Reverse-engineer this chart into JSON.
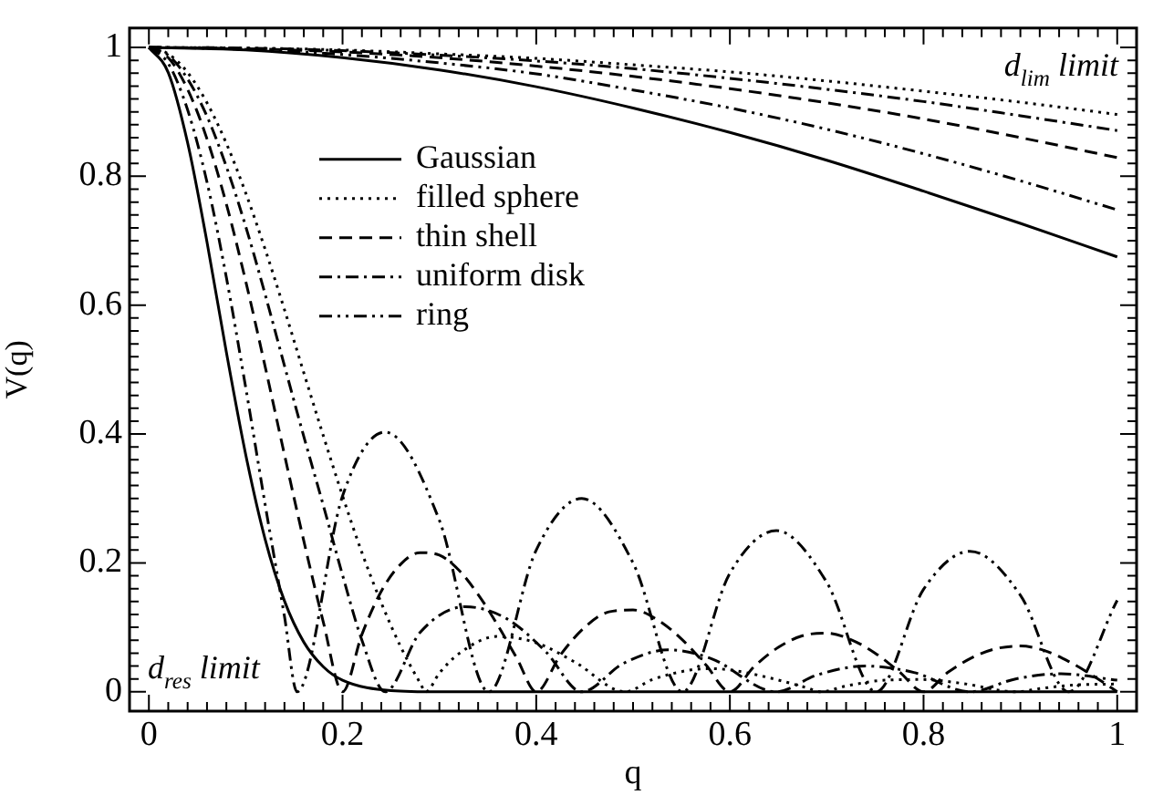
{
  "chart_data": {
    "type": "line",
    "xlabel": "q",
    "ylabel": "V(q)",
    "xlim": [
      -0.02,
      1.02
    ],
    "ylim": [
      -0.03,
      1.03
    ],
    "xticks": [
      0,
      {
        "value": 0.02,
        "label": null
      },
      {
        "value": 0.04,
        "label": null
      },
      {
        "value": 0.06,
        "label": null
      },
      {
        "value": 0.08,
        "label": null
      },
      {
        "value": 0.1,
        "label": null
      },
      {
        "value": 0.12,
        "label": null
      },
      {
        "value": 0.14,
        "label": null
      },
      {
        "value": 0.16,
        "label": null
      },
      {
        "value": 0.18,
        "label": null
      },
      0.2,
      {
        "value": 0.22,
        "label": null
      },
      {
        "value": 0.24,
        "label": null
      },
      {
        "value": 0.26,
        "label": null
      },
      {
        "value": 0.28,
        "label": null
      },
      {
        "value": 0.3,
        "label": null
      },
      {
        "value": 0.32,
        "label": null
      },
      {
        "value": 0.34,
        "label": null
      },
      {
        "value": 0.36,
        "label": null
      },
      {
        "value": 0.38,
        "label": null
      },
      0.4,
      {
        "value": 0.42,
        "label": null
      },
      {
        "value": 0.44,
        "label": null
      },
      {
        "value": 0.46,
        "label": null
      },
      {
        "value": 0.48,
        "label": null
      },
      {
        "value": 0.5,
        "label": null
      },
      {
        "value": 0.52,
        "label": null
      },
      {
        "value": 0.54,
        "label": null
      },
      {
        "value": 0.56,
        "label": null
      },
      {
        "value": 0.58,
        "label": null
      },
      0.6,
      {
        "value": 0.62,
        "label": null
      },
      {
        "value": 0.64,
        "label": null
      },
      {
        "value": 0.66,
        "label": null
      },
      {
        "value": 0.68,
        "label": null
      },
      {
        "value": 0.7,
        "label": null
      },
      {
        "value": 0.72,
        "label": null
      },
      {
        "value": 0.74,
        "label": null
      },
      {
        "value": 0.76,
        "label": null
      },
      {
        "value": 0.78,
        "label": null
      },
      0.8,
      {
        "value": 0.82,
        "label": null
      },
      {
        "value": 0.84,
        "label": null
      },
      {
        "value": 0.86,
        "label": null
      },
      {
        "value": 0.88,
        "label": null
      },
      {
        "value": 0.9,
        "label": null
      },
      {
        "value": 0.92,
        "label": null
      },
      {
        "value": 0.94,
        "label": null
      },
      {
        "value": 0.96,
        "label": null
      },
      {
        "value": 0.98,
        "label": null
      },
      1
    ],
    "yticks": [
      0,
      {
        "value": 0.02,
        "label": null
      },
      {
        "value": 0.04,
        "label": null
      },
      {
        "value": 0.06,
        "label": null
      },
      {
        "value": 0.08,
        "label": null
      },
      {
        "value": 0.1,
        "label": null
      },
      {
        "value": 0.12,
        "label": null
      },
      {
        "value": 0.14,
        "label": null
      },
      {
        "value": 0.16,
        "label": null
      },
      {
        "value": 0.18,
        "label": null
      },
      0.2,
      {
        "value": 0.22,
        "label": null
      },
      {
        "value": 0.24,
        "label": null
      },
      {
        "value": 0.26,
        "label": null
      },
      {
        "value": 0.28,
        "label": null
      },
      {
        "value": 0.3,
        "label": null
      },
      {
        "value": 0.32,
        "label": null
      },
      {
        "value": 0.34,
        "label": null
      },
      {
        "value": 0.36,
        "label": null
      },
      {
        "value": 0.38,
        "label": null
      },
      0.4,
      {
        "value": 0.42,
        "label": null
      },
      {
        "value": 0.44,
        "label": null
      },
      {
        "value": 0.46,
        "label": null
      },
      {
        "value": 0.48,
        "label": null
      },
      {
        "value": 0.5,
        "label": null
      },
      {
        "value": 0.52,
        "label": null
      },
      {
        "value": 0.54,
        "label": null
      },
      {
        "value": 0.56,
        "label": null
      },
      {
        "value": 0.58,
        "label": null
      },
      0.6,
      {
        "value": 0.62,
        "label": null
      },
      {
        "value": 0.64,
        "label": null
      },
      {
        "value": 0.66,
        "label": null
      },
      {
        "value": 0.68,
        "label": null
      },
      {
        "value": 0.7,
        "label": null
      },
      {
        "value": 0.72,
        "label": null
      },
      {
        "value": 0.74,
        "label": null
      },
      {
        "value": 0.76,
        "label": null
      },
      {
        "value": 0.78,
        "label": null
      },
      0.8,
      {
        "value": 0.82,
        "label": null
      },
      {
        "value": 0.84,
        "label": null
      },
      {
        "value": 0.86,
        "label": null
      },
      {
        "value": 0.88,
        "label": null
      },
      {
        "value": 0.9,
        "label": null
      },
      {
        "value": 0.92,
        "label": null
      },
      {
        "value": 0.94,
        "label": null
      },
      {
        "value": 0.96,
        "label": null
      },
      {
        "value": 0.98,
        "label": null
      },
      1
    ],
    "legend": "top left",
    "marker": "none",
    "grid": false,
    "annotations": [
      "d$_{res}$ limit",
      "d$_{lim}$ limit"
    ],
    "series": [
      {
        "name": "Gaussian",
        "color": "#000000",
        "line_style": "solid",
        "x": [
          0,
          0.02,
          0.04,
          0.06,
          0.08,
          0.1,
          0.12,
          0.14,
          0.16,
          0.18,
          0.2,
          0.25,
          0.3,
          1
        ],
        "values": [
          1,
          0.961,
          0.852,
          0.698,
          0.527,
          0.368,
          0.237,
          0.141,
          0.077,
          0.039,
          0.018,
          0.002,
          0,
          0
        ]
      },
      {
        "color": "#000000",
        "line_style": "solid",
        "x": [
          0,
          0.1,
          0.2,
          0.3,
          0.4,
          0.5,
          0.6,
          0.7,
          0.8,
          0.9,
          1
        ],
        "values": [
          1,
          0.996,
          0.984,
          0.965,
          0.939,
          0.906,
          0.868,
          0.825,
          0.777,
          0.727,
          0.675
        ]
      },
      {
        "name": "filled sphere",
        "color": "#000000",
        "line_style": "dotted",
        "x": [
          0,
          0.02,
          0.04,
          0.06,
          0.08,
          0.1,
          0.12,
          0.14,
          0.16,
          0.18,
          0.2,
          0.22,
          0.24,
          0.26,
          0.28,
          0.286,
          0.3,
          0.32,
          0.36,
          0.4,
          0.44,
          0.492,
          0.52,
          0.56,
          0.58,
          0.6,
          0.64,
          0.68,
          0.694,
          0.72,
          0.76,
          0.8,
          0.84,
          0.896,
          0.92,
          0.96,
          1
        ],
        "values": [
          1,
          0.99,
          0.961,
          0.914,
          0.851,
          0.774,
          0.687,
          0.593,
          0.495,
          0.398,
          0.304,
          0.216,
          0.138,
          0.07,
          0.014,
          0,
          0.029,
          0.059,
          0.086,
          0.076,
          0.046,
          0,
          0.019,
          0.034,
          0.036,
          0.034,
          0.022,
          0.006,
          0,
          0.009,
          0.018,
          0.019,
          0.013,
          0,
          0.005,
          0.011,
          0.012
        ]
      },
      {
        "color": "#000000",
        "line_style": "dotted",
        "x": [
          0,
          0.1,
          0.2,
          0.3,
          0.4,
          0.5,
          0.6,
          0.7,
          0.8,
          0.9,
          1
        ],
        "values": [
          1,
          0.999,
          0.996,
          0.99,
          0.983,
          0.973,
          0.962,
          0.948,
          0.932,
          0.915,
          0.896
        ]
      },
      {
        "name": "thin shell",
        "color": "#000000",
        "line_style": "dashed",
        "x": [
          0,
          0.02,
          0.04,
          0.06,
          0.08,
          0.1,
          0.12,
          0.14,
          0.16,
          0.18,
          0.2,
          0.22,
          0.24,
          0.26,
          0.28,
          0.3,
          0.32,
          0.34,
          0.36,
          0.38,
          0.4,
          0.425,
          0.45,
          0.475,
          0.5,
          0.525,
          0.55,
          0.575,
          0.6,
          0.625,
          0.65,
          0.675,
          0.7,
          0.725,
          0.75,
          0.775,
          0.8,
          0.825,
          0.85,
          0.875,
          0.9,
          0.925,
          0.95,
          0.975,
          1
        ],
        "values": [
          1,
          0.984,
          0.935,
          0.858,
          0.757,
          0.637,
          0.505,
          0.368,
          0.234,
          0.109,
          0,
          0.089,
          0.156,
          0.198,
          0.216,
          0.212,
          0.189,
          0.151,
          0.104,
          0.052,
          0,
          0.057,
          0.1,
          0.124,
          0.127,
          0.112,
          0.082,
          0.042,
          0,
          0.039,
          0.069,
          0.087,
          0.091,
          0.081,
          0.06,
          0.031,
          0,
          0.03,
          0.053,
          0.067,
          0.071,
          0.064,
          0.047,
          0.025,
          0
        ]
      },
      {
        "color": "#000000",
        "line_style": "dashed",
        "x": [
          0,
          0.1,
          0.2,
          0.3,
          0.4,
          0.5,
          0.6,
          0.7,
          0.8,
          0.9,
          1
        ],
        "values": [
          1,
          0.998,
          0.993,
          0.984,
          0.971,
          0.955,
          0.936,
          0.914,
          0.889,
          0.86,
          0.829
        ]
      },
      {
        "name": "uniform disk",
        "color": "#000000",
        "line_style": "dashdot",
        "x": [
          0,
          0.02,
          0.04,
          0.06,
          0.08,
          0.1,
          0.12,
          0.14,
          0.16,
          0.18,
          0.2,
          0.22,
          0.244,
          0.28,
          0.327,
          0.37,
          0.41,
          0.447,
          0.49,
          0.536,
          0.58,
          0.648,
          0.69,
          0.74,
          0.79,
          0.848,
          0.895,
          0.942,
          1
        ],
        "values": [
          1,
          0.988,
          0.951,
          0.893,
          0.815,
          0.722,
          0.617,
          0.506,
          0.396,
          0.29,
          0.181,
          0.08,
          0,
          0.092,
          0.132,
          0.113,
          0.062,
          0,
          0.044,
          0.065,
          0.052,
          0,
          0.026,
          0.04,
          0.03,
          0,
          0.02,
          0.028,
          0.018
        ]
      },
      {
        "color": "#000000",
        "line_style": "dashdot",
        "x": [
          0,
          0.1,
          0.2,
          0.3,
          0.4,
          0.5,
          0.6,
          0.7,
          0.8,
          0.9,
          1
        ],
        "values": [
          1,
          0.999,
          0.995,
          0.988,
          0.979,
          0.967,
          0.952,
          0.935,
          0.916,
          0.894,
          0.871
        ]
      },
      {
        "name": "ring",
        "color": "#000000",
        "line_style": "dashdotdot",
        "x": [
          0,
          0.02,
          0.04,
          0.06,
          0.08,
          0.1,
          0.12,
          0.14,
          0.153,
          0.2,
          0.244,
          0.3,
          0.351,
          0.4,
          0.447,
          0.5,
          0.551,
          0.6,
          0.648,
          0.7,
          0.751,
          0.8,
          0.848,
          0.9,
          0.95,
          1
        ],
        "values": [
          1,
          0.975,
          0.903,
          0.791,
          0.643,
          0.472,
          0.291,
          0.117,
          0,
          0.304,
          0.403,
          0.266,
          0,
          0.22,
          0.3,
          0.2,
          0,
          0.184,
          0.25,
          0.17,
          0,
          0.159,
          0.218,
          0.15,
          0,
          0.142
        ]
      },
      {
        "color": "#000000",
        "line_style": "dashdotdot",
        "x": [
          0,
          0.1,
          0.2,
          0.3,
          0.4,
          0.5,
          0.6,
          0.7,
          0.8,
          0.9,
          1
        ],
        "values": [
          1,
          0.997,
          0.989,
          0.976,
          0.959,
          0.934,
          0.906,
          0.873,
          0.835,
          0.793,
          0.748
        ]
      }
    ]
  }
}
